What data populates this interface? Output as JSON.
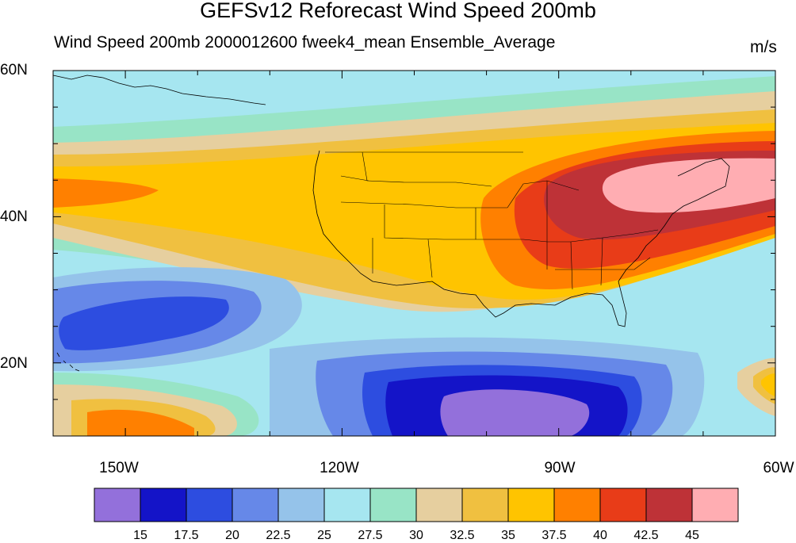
{
  "title": "GEFSv12 Reforecast Wind Speed 200mb",
  "subtitle": "Wind Speed 200mb 2000012600 fweek4_mean Ensemble_Average",
  "units": "m/s",
  "map": {
    "region": "North Pacific / Continental United States",
    "lat_range": [
      10,
      60
    ],
    "lon_range": [
      -160,
      -60
    ],
    "lat_ticks": [
      {
        "value": 60,
        "label": "60N"
      },
      {
        "value": 40,
        "label": "40N"
      },
      {
        "value": 20,
        "label": "20N"
      }
    ],
    "lon_ticks": [
      {
        "value": -150,
        "label": "150W"
      },
      {
        "value": -120,
        "label": "120W"
      },
      {
        "value": -90,
        "label": "90W"
      },
      {
        "value": -60,
        "label": "60W"
      }
    ],
    "features": [
      "coastlines",
      "US state boundaries",
      "filled contours of wind speed"
    ],
    "max_core": "45+ m/s jet core over the Great Lakes / Northeast US",
    "min_core": "below 15 m/s over the tropical eastern Pacific near 12N"
  },
  "colorbar": {
    "levels": [
      "15",
      "17.5",
      "20",
      "22.5",
      "25",
      "27.5",
      "30",
      "32.5",
      "35",
      "37.5",
      "40",
      "42.5",
      "45"
    ],
    "colors": [
      "#9370db",
      "#1414c8",
      "#2d4de0",
      "#6688e8",
      "#95c3ea",
      "#a6e6f0",
      "#98e4c6",
      "#e6cf9f",
      "#f0c040",
      "#ffc400",
      "#ff8000",
      "#e83c18",
      "#be3237",
      "#ffadb2"
    ]
  }
}
